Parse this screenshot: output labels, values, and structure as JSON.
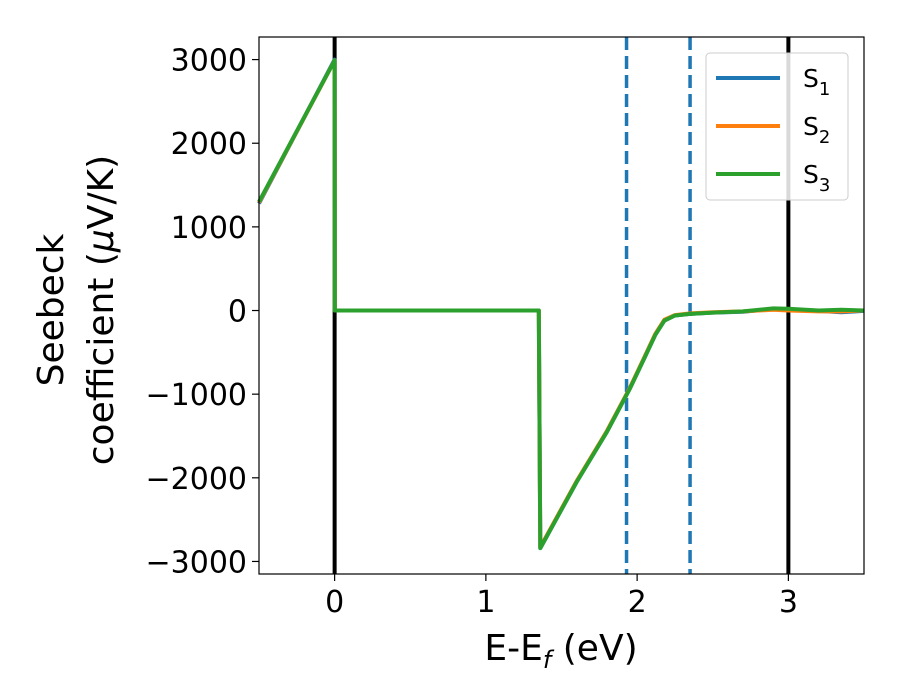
{
  "chart_data": {
    "type": "line",
    "xlabel": "E-E",
    "xlabel_sub": "f",
    "xlabel_unit": " (eV)",
    "ylabel_line1": "Seebeck",
    "ylabel_line2": "coefficient  (",
    "ylabel_mu": "μ",
    "ylabel_unit": "V/K)",
    "xlim": [
      -0.5,
      3.5
    ],
    "ylim": [
      -3150,
      3270
    ],
    "x_ticks": [
      0,
      1,
      2,
      3
    ],
    "x_tick_labels": [
      "0",
      "1",
      "2",
      "3"
    ],
    "y_ticks": [
      3000,
      2000,
      1000,
      0,
      -1000,
      -2000,
      -3000
    ],
    "y_tick_labels": [
      "3000",
      "2000",
      "1000",
      "0",
      "−1000",
      "−2000",
      "−3000"
    ],
    "grid": false,
    "legend_position": "top-right",
    "series": [
      {
        "name": "S",
        "name_sub": "1",
        "color": "#1f77b4",
        "x": [
          -0.5,
          0.0,
          0.001,
          1.35,
          1.36,
          1.6,
          1.8,
          1.95,
          2.05,
          2.12,
          2.18,
          2.25,
          2.35,
          2.5,
          2.7,
          2.9,
          3.0,
          3.2,
          3.35,
          3.5
        ],
        "y": [
          1280,
          3000,
          0,
          0,
          -2840,
          -2050,
          -1450,
          -940,
          -560,
          -290,
          -120,
          -60,
          -40,
          -25,
          -15,
          20,
          15,
          -5,
          -20,
          -5
        ]
      },
      {
        "name": "S",
        "name_sub": "2",
        "color": "#ff7f0e",
        "x": [
          -0.5,
          0.0,
          0.001,
          1.35,
          1.36,
          1.6,
          1.8,
          1.95,
          2.05,
          2.12,
          2.18,
          2.25,
          2.35,
          2.5,
          2.7,
          2.9,
          3.0,
          3.2,
          3.35,
          3.5
        ],
        "y": [
          1290,
          2990,
          0,
          0,
          -2830,
          -2040,
          -1440,
          -930,
          -550,
          -280,
          -110,
          -55,
          -35,
          -20,
          -10,
          10,
          0,
          -10,
          -10,
          0
        ]
      },
      {
        "name": "S",
        "name_sub": "3",
        "color": "#2ca02c",
        "x": [
          -0.5,
          0.0,
          0.001,
          1.35,
          1.36,
          1.6,
          1.8,
          1.95,
          2.05,
          2.12,
          2.18,
          2.25,
          2.35,
          2.5,
          2.7,
          2.9,
          3.0,
          3.2,
          3.35,
          3.5
        ],
        "y": [
          1300,
          2990,
          0,
          0,
          -2840,
          -2050,
          -1450,
          -940,
          -560,
          -290,
          -120,
          -60,
          -40,
          -25,
          -10,
          25,
          20,
          0,
          10,
          0
        ]
      }
    ],
    "vertical_lines": [
      {
        "x": 0.0,
        "color": "#000000",
        "style": "solid"
      },
      {
        "x": 3.0,
        "color": "#000000",
        "style": "solid"
      },
      {
        "x": 1.93,
        "color": "#1f77b4",
        "style": "dashed"
      },
      {
        "x": 2.35,
        "color": "#1f77b4",
        "style": "dashed"
      }
    ]
  }
}
